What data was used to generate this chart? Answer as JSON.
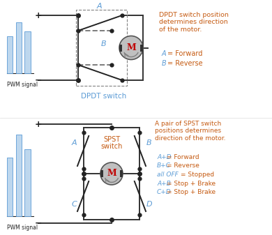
{
  "bg_color": "#ffffff",
  "blue_color": "#5B9BD5",
  "orange_color": "#C55A11",
  "red_color": "#C00000",
  "gray_color": "#808080",
  "dark_color": "#222222",
  "pwm_bar_color": "#BDD7EE",
  "pwm_bar_edge": "#5B9BD5",
  "motor_bg": "#C0C0C0",
  "motor_shaft": "#333333",
  "wire_color": "#333333",
  "dot_color": "#333333",
  "dpdt_label": "DPDT switch",
  "spst_label_line1": "SPST",
  "spst_label_line2": "switch",
  "motor_label": "M",
  "pwm_label": "PWM signal",
  "dpdt_title": "DPDT switch position\ndetermines direction\nof the motor.",
  "dpdt_A_text": "A = Forward",
  "dpdt_B_text": "B = Reverse",
  "spst_title": "A pair of SPST switch\npositions determines\ndirection of the motor.",
  "spst_lines": [
    [
      "A+D",
      "= Forward"
    ],
    [
      "B+C",
      "= Reverse"
    ],
    [
      "all OFF",
      "= Stopped"
    ],
    [
      "A+B",
      "= Stop + Brake"
    ],
    [
      "C+D",
      "= Stop + Brake"
    ]
  ],
  "lw": 1.4,
  "dot_ms": 4
}
